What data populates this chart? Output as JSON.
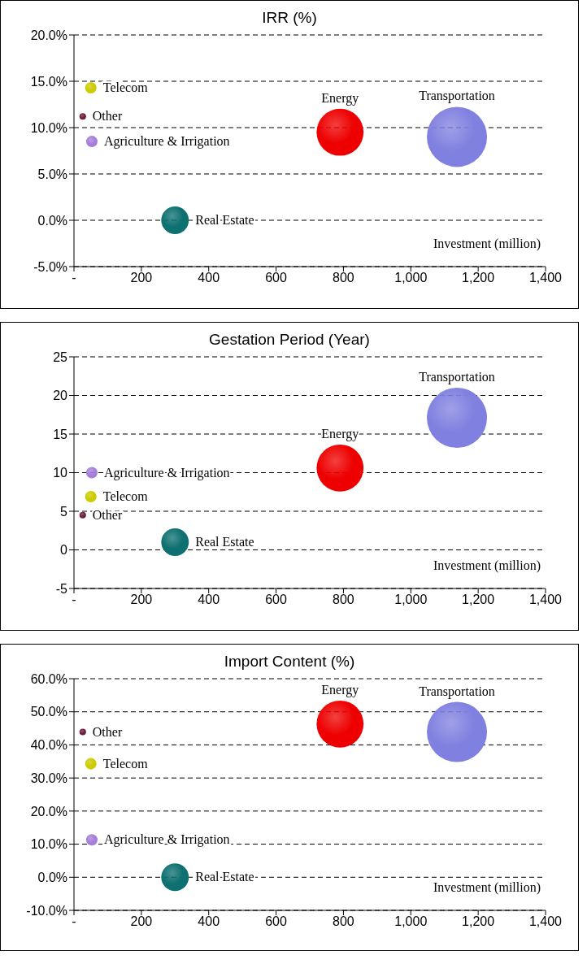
{
  "chart_data": [
    {
      "type": "bubble",
      "title": "IRR (%)",
      "xlabel": "Investment (million)",
      "xlim": [
        0,
        1400
      ],
      "xticks": [
        {
          "value": 0,
          "label": "-"
        },
        200,
        400,
        600,
        800,
        {
          "value": 1000,
          "label": "1,000"
        },
        {
          "value": 1200,
          "label": "1,200"
        },
        {
          "value": 1400,
          "label": "1,400"
        }
      ],
      "ylim": [
        -5,
        20
      ],
      "yticks": [
        {
          "value": -5,
          "label": "-5.0%"
        },
        {
          "value": 0,
          "label": "0.0%"
        },
        {
          "value": 5,
          "label": "5.0%"
        },
        {
          "value": 10,
          "label": "10.0%"
        },
        {
          "value": 15,
          "label": "15.0%"
        },
        {
          "value": 20,
          "label": "20.0%"
        }
      ],
      "grid": "y",
      "legend": false,
      "series": [
        {
          "name": "Telecom",
          "color": "#cccc00",
          "x": [
            50
          ],
          "values": [
            14.3
          ],
          "sizes": [
            0.036
          ]
        },
        {
          "name": "Other",
          "color": "#6b2040",
          "x": [
            26
          ],
          "values": [
            11.2
          ],
          "sizes": [
            0.012
          ]
        },
        {
          "name": "Agriculture & Irrigation",
          "color": "#a67fd8",
          "x": [
            53
          ],
          "values": [
            8.5
          ],
          "sizes": [
            0.036
          ]
        },
        {
          "name": "Real Estate",
          "color": "#0e7070",
          "x": [
            300
          ],
          "values": [
            0
          ],
          "sizes": [
            0.21
          ]
        },
        {
          "name": "Energy",
          "color": "#ee0000",
          "x": [
            790
          ],
          "values": [
            9.5
          ],
          "sizes": [
            0.61
          ]
        },
        {
          "name": "Transportation",
          "color": "#8080e0",
          "x": [
            1137
          ],
          "values": [
            9.0
          ],
          "sizes": [
            1
          ]
        }
      ]
    },
    {
      "type": "bubble",
      "title": "Gestation Period (Year)",
      "xlabel": "Investment (million)",
      "xlim": [
        0,
        1400
      ],
      "xticks": [
        {
          "value": 0,
          "label": "-"
        },
        200,
        400,
        600,
        800,
        {
          "value": 1000,
          "label": "1,000"
        },
        {
          "value": 1200,
          "label": "1,200"
        },
        {
          "value": 1400,
          "label": "1,400"
        }
      ],
      "ylim": [
        -5,
        25
      ],
      "yticks": [
        -5,
        0,
        5,
        10,
        15,
        20,
        25
      ],
      "grid": "y",
      "legend": false,
      "series": [
        {
          "name": "Agriculture & Irrigation",
          "color": "#a67fd8",
          "x": [
            53
          ],
          "values": [
            10
          ],
          "sizes": [
            0.036
          ]
        },
        {
          "name": "Telecom",
          "color": "#cccc00",
          "x": [
            50
          ],
          "values": [
            6.9
          ],
          "sizes": [
            0.036
          ]
        },
        {
          "name": "Other",
          "color": "#6b2040",
          "x": [
            26
          ],
          "values": [
            4.5
          ],
          "sizes": [
            0.012
          ]
        },
        {
          "name": "Real Estate",
          "color": "#0e7070",
          "x": [
            300
          ],
          "values": [
            1
          ],
          "sizes": [
            0.21
          ]
        },
        {
          "name": "Energy",
          "color": "#ee0000",
          "x": [
            790
          ],
          "values": [
            10.6
          ],
          "sizes": [
            0.61
          ]
        },
        {
          "name": "Transportation",
          "color": "#8080e0",
          "x": [
            1137
          ],
          "values": [
            17.1
          ],
          "sizes": [
            1
          ]
        }
      ]
    },
    {
      "type": "bubble",
      "title": "Import Content (%)",
      "xlabel": "Investment (million)",
      "xlim": [
        0,
        1400
      ],
      "xticks": [
        {
          "value": 0,
          "label": "-"
        },
        200,
        400,
        600,
        800,
        {
          "value": 1000,
          "label": "1,000"
        },
        {
          "value": 1200,
          "label": "1,200"
        },
        {
          "value": 1400,
          "label": "1,400"
        }
      ],
      "ylim": [
        -10,
        60
      ],
      "yticks": [
        {
          "value": -10,
          "label": "-10.0%"
        },
        {
          "value": 0,
          "label": "0.0%"
        },
        {
          "value": 10,
          "label": "10.0%"
        },
        {
          "value": 20,
          "label": "20.0%"
        },
        {
          "value": 30,
          "label": "30.0%"
        },
        {
          "value": 40,
          "label": "40.0%"
        },
        {
          "value": 50,
          "label": "50.0%"
        },
        {
          "value": 60,
          "label": "60.0%"
        }
      ],
      "grid": "y",
      "legend": false,
      "series": [
        {
          "name": "Other",
          "color": "#6b2040",
          "x": [
            26
          ],
          "values": [
            43.9
          ],
          "sizes": [
            0.012
          ]
        },
        {
          "name": "Telecom",
          "color": "#cccc00",
          "x": [
            50
          ],
          "values": [
            34.3
          ],
          "sizes": [
            0.036
          ]
        },
        {
          "name": "Agriculture & Irrigation",
          "color": "#a67fd8",
          "x": [
            53
          ],
          "values": [
            11.3
          ],
          "sizes": [
            0.036
          ]
        },
        {
          "name": "Real Estate",
          "color": "#0e7070",
          "x": [
            300
          ],
          "values": [
            0
          ],
          "sizes": [
            0.21
          ]
        },
        {
          "name": "Energy",
          "color": "#ee0000",
          "x": [
            790
          ],
          "values": [
            46.3
          ],
          "sizes": [
            0.61
          ]
        },
        {
          "name": "Transportation",
          "color": "#8080e0",
          "x": [
            1137
          ],
          "values": [
            43.9
          ],
          "sizes": [
            1
          ]
        }
      ]
    }
  ]
}
